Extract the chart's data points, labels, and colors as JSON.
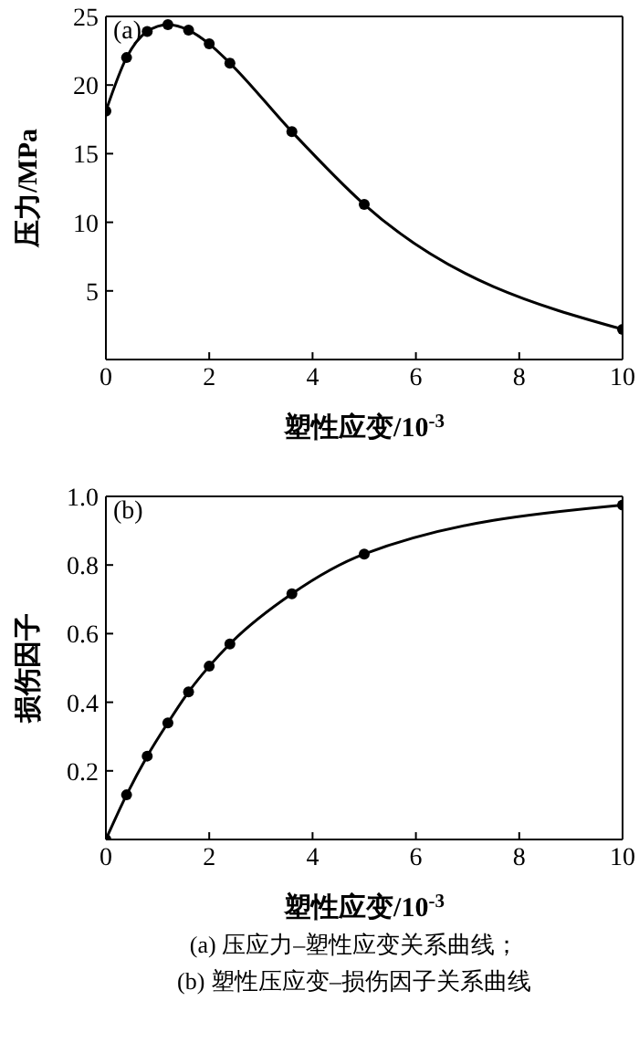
{
  "chart_data": [
    {
      "type": "line",
      "xlabel": "塑性应变/10$^{-3}$",
      "ylabel": "压力/MPa",
      "annotations": [
        "(a)"
      ],
      "x": [
        0,
        0.4,
        0.8,
        1.2,
        1.6,
        2.0,
        2.4,
        3.6,
        5,
        10
      ],
      "series": [
        {
          "color": "#000000",
          "values": [
            18.1,
            22.0,
            23.9,
            24.4,
            24.0,
            23.0,
            21.6,
            16.6,
            11.3,
            2.2
          ]
        }
      ],
      "xlim": [
        0,
        10
      ],
      "xticks": [
        0,
        2,
        4,
        6,
        8,
        10
      ],
      "ylim": [
        0,
        25
      ],
      "yticks": [
        5,
        10,
        15,
        20,
        25
      ],
      "marker": "circle",
      "line_style": "solid"
    },
    {
      "type": "line",
      "xlabel": "塑性应变/10$^{-3}$",
      "ylabel": "损伤因子",
      "annotations": [
        "(b)",
        "(a) 压应力–塑性应变关系曲线；",
        "(b) 塑性压应变–损伤因子关系曲线"
      ],
      "x": [
        0,
        0.4,
        0.8,
        1.2,
        1.6,
        2.0,
        2.4,
        3.6,
        5,
        10
      ],
      "series": [
        {
          "color": "#000000",
          "values": [
            0,
            0.13,
            0.243,
            0.34,
            0.43,
            0.505,
            0.57,
            0.716,
            0.832,
            0.975
          ]
        }
      ],
      "xlim": [
        0,
        10
      ],
      "xticks": [
        0,
        2,
        4,
        6,
        8,
        10
      ],
      "ylim": [
        0,
        1
      ],
      "yticks": [
        0.2,
        0.4,
        0.6,
        0.8,
        {
          "value": 1.0,
          "label": "1.0"
        }
      ],
      "marker": "circle",
      "line_style": "solid"
    }
  ]
}
